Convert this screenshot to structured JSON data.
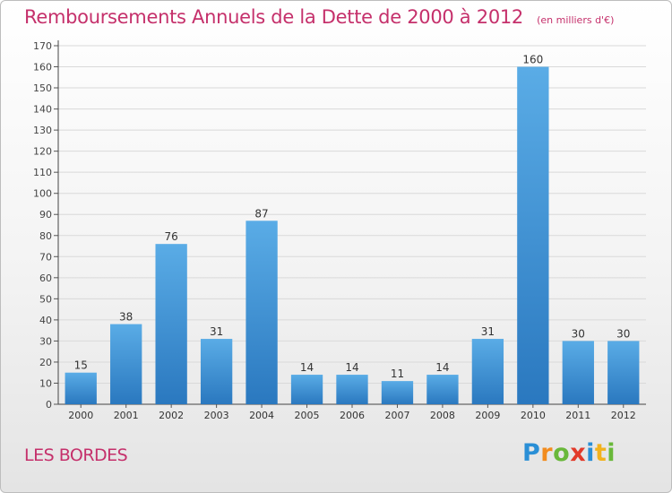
{
  "title": "Remboursements Annuels de la Dette de 2000 à 2012",
  "subtitle": "(en milliers d'€)",
  "commune": "LES BORDES",
  "logo": {
    "text": "Proxiti",
    "letters": [
      "P",
      "r",
      "o",
      "x",
      "i",
      "t",
      "i"
    ],
    "colors": [
      "#2a8fd6",
      "#f28c1e",
      "#69b83a",
      "#e23a2a",
      "#2a8fd6",
      "#f2b21e",
      "#69b83a"
    ]
  },
  "colors": {
    "bar_top": "#5aace6",
    "bar_bottom": "#2a78bf",
    "title": "#c5306b",
    "grid": "#d9d9d9"
  },
  "chart_data": {
    "type": "bar",
    "categories": [
      "2000",
      "2001",
      "2002",
      "2003",
      "2004",
      "2005",
      "2006",
      "2007",
      "2008",
      "2009",
      "2010",
      "2011",
      "2012"
    ],
    "values": [
      15,
      38,
      76,
      31,
      87,
      14,
      14,
      11,
      14,
      31,
      160,
      30,
      30
    ],
    "data_labels": [
      "15",
      "38",
      "76",
      "31",
      "87",
      "14",
      "14",
      "11",
      "14",
      "31",
      "160",
      "30",
      "30"
    ],
    "title": "Remboursements Annuels de la Dette de 2000 à 2012",
    "subtitle": "(en milliers d'€)",
    "xlabel": "",
    "ylabel": "",
    "ylim": [
      0,
      170
    ],
    "yticks": [
      0,
      10,
      20,
      30,
      40,
      50,
      60,
      70,
      80,
      90,
      100,
      110,
      120,
      130,
      140,
      150,
      160,
      170
    ],
    "grid": true,
    "legend": "none"
  }
}
